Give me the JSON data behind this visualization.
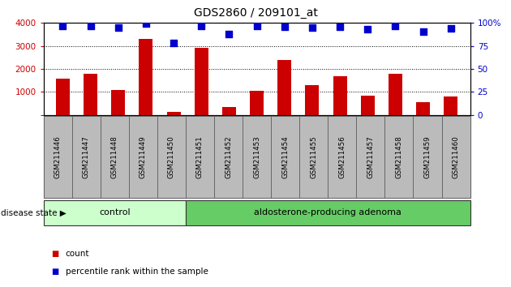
{
  "title": "GDS2860 / 209101_at",
  "samples": [
    "GSM211446",
    "GSM211447",
    "GSM211448",
    "GSM211449",
    "GSM211450",
    "GSM211451",
    "GSM211452",
    "GSM211453",
    "GSM211454",
    "GSM211455",
    "GSM211456",
    "GSM211457",
    "GSM211458",
    "GSM211459",
    "GSM211460"
  ],
  "counts": [
    1580,
    1800,
    1080,
    3310,
    130,
    2930,
    340,
    1050,
    2390,
    1310,
    1670,
    820,
    1800,
    560,
    810
  ],
  "percentiles": [
    97,
    97,
    95,
    99,
    78,
    97,
    88,
    97,
    96,
    95,
    96,
    93,
    97,
    91,
    94
  ],
  "control_count": 5,
  "disease_count": 10,
  "bar_color": "#cc0000",
  "dot_color": "#0000cc",
  "ylim_left": [
    0,
    4000
  ],
  "ylim_right": [
    0,
    100
  ],
  "yticks_left": [
    0,
    1000,
    2000,
    3000,
    4000
  ],
  "yticks_right": [
    0,
    25,
    50,
    75,
    100
  ],
  "grid_lines": [
    1000,
    2000,
    3000
  ],
  "control_label": "control",
  "adenoma_label": "aldosterone-producing adenoma",
  "disease_state_label": "disease state",
  "legend_count_label": "count",
  "legend_pct_label": "percentile rank within the sample",
  "control_color": "#ccffcc",
  "adenoma_color": "#66cc66",
  "bg_color": "#ffffff",
  "tick_area_color": "#bbbbbb",
  "bar_width": 0.5,
  "dot_size": 35
}
